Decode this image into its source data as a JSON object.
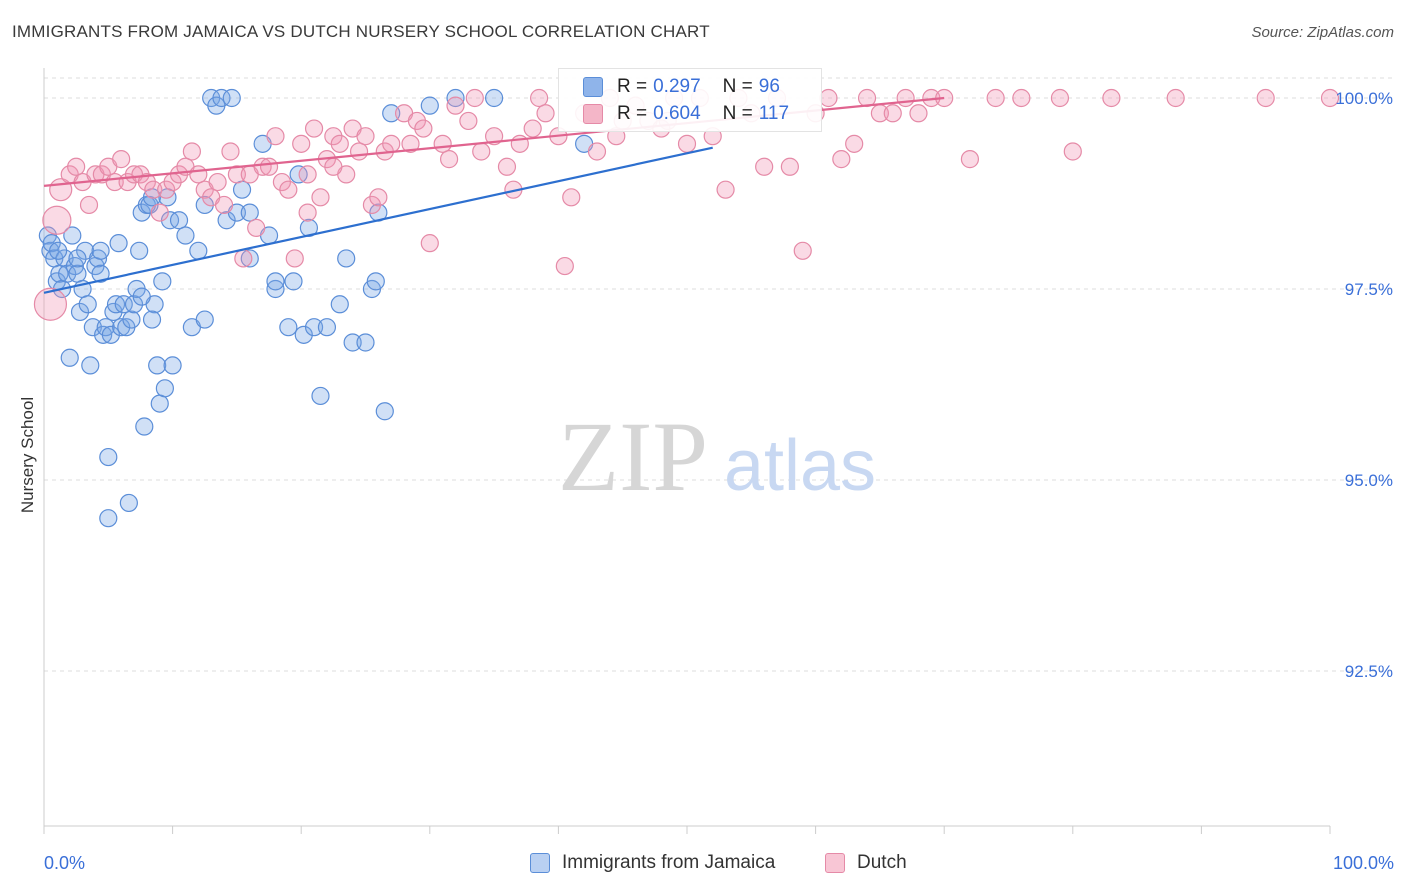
{
  "title": "IMMIGRANTS FROM JAMAICA VS DUTCH NURSERY SCHOOL CORRELATION CHART",
  "source": "Source: ZipAtlas.com",
  "watermark": {
    "zip": "ZIP",
    "atlas": "atlas"
  },
  "legend_top": {
    "rows": [
      {
        "r_label": "R = ",
        "r_value": "0.297",
        "n_label": "N = ",
        "n_value": "96",
        "color": "#8fb4ea",
        "border": "#5b8ed8"
      },
      {
        "r_label": "R = ",
        "r_value": "0.604",
        "n_label": "N = ",
        "n_value": "117",
        "color": "#f4b6c8",
        "border": "#e58aa7"
      }
    ]
  },
  "legend_bottom": [
    {
      "label": "Immigrants from Jamaica",
      "color": "#b9d0f2",
      "border": "#5b8ed8"
    },
    {
      "label": "Dutch",
      "color": "#f8c6d5",
      "border": "#e58aa7"
    }
  ],
  "chart_data": {
    "type": "scatter",
    "title": "IMMIGRANTS FROM JAMAICA VS DUTCH NURSERY SCHOOL CORRELATION CHART",
    "xlabel": "",
    "ylabel": "Nursery School",
    "xlim": [
      0,
      100
    ],
    "ylim": [
      90.5,
      100.4
    ],
    "x_tick_labels": [
      "0.0%",
      "100.0%"
    ],
    "y_ticks": [
      {
        "value": 100.0,
        "label": "100.0%"
      },
      {
        "value": 97.5,
        "label": "97.5%"
      },
      {
        "value": 95.0,
        "label": "95.0%"
      },
      {
        "value": 92.5,
        "label": "92.5%"
      }
    ],
    "grid": true,
    "series": [
      {
        "name": "Immigrants from Jamaica",
        "color": "#5b8ed8",
        "fill": "rgba(120,165,230,0.35)",
        "line_color": "#2d6fcf",
        "trend": {
          "x": [
            0,
            52
          ],
          "y": [
            97.45,
            99.35
          ]
        },
        "points": [
          [
            0.3,
            98.2
          ],
          [
            0.5,
            98.0
          ],
          [
            0.6,
            98.1
          ],
          [
            0.8,
            97.9
          ],
          [
            1.0,
            97.6
          ],
          [
            1.2,
            97.7
          ],
          [
            1.4,
            97.5
          ],
          [
            1.6,
            97.9
          ],
          [
            1.8,
            97.7
          ],
          [
            2.0,
            96.6
          ],
          [
            2.2,
            98.2
          ],
          [
            2.4,
            97.8
          ],
          [
            2.6,
            97.7
          ],
          [
            2.8,
            97.2
          ],
          [
            3.0,
            97.5
          ],
          [
            3.2,
            98.0
          ],
          [
            3.4,
            97.3
          ],
          [
            3.6,
            96.5
          ],
          [
            3.8,
            97.0
          ],
          [
            4.0,
            97.8
          ],
          [
            4.2,
            97.9
          ],
          [
            4.4,
            98.0
          ],
          [
            4.6,
            96.9
          ],
          [
            4.8,
            97.0
          ],
          [
            5.0,
            95.3
          ],
          [
            5.2,
            96.9
          ],
          [
            5.4,
            97.2
          ],
          [
            5.6,
            97.3
          ],
          [
            5.8,
            98.1
          ],
          [
            6.0,
            97.0
          ],
          [
            6.2,
            97.3
          ],
          [
            6.4,
            97.0
          ],
          [
            6.6,
            94.7
          ],
          [
            6.8,
            97.1
          ],
          [
            7.0,
            97.3
          ],
          [
            7.2,
            97.5
          ],
          [
            7.4,
            98.0
          ],
          [
            7.6,
            98.5
          ],
          [
            7.8,
            95.7
          ],
          [
            8.0,
            98.6
          ],
          [
            8.2,
            98.6
          ],
          [
            8.4,
            98.7
          ],
          [
            8.6,
            97.3
          ],
          [
            8.8,
            96.5
          ],
          [
            9.0,
            96.0
          ],
          [
            9.2,
            97.6
          ],
          [
            9.4,
            96.2
          ],
          [
            9.6,
            98.7
          ],
          [
            9.8,
            98.4
          ],
          [
            10.0,
            96.5
          ],
          [
            10.5,
            98.4
          ],
          [
            11.0,
            98.2
          ],
          [
            11.5,
            97.0
          ],
          [
            12.0,
            98.0
          ],
          [
            12.5,
            98.6
          ],
          [
            13.0,
            100.0
          ],
          [
            13.4,
            99.9
          ],
          [
            13.8,
            100.0
          ],
          [
            14.2,
            98.4
          ],
          [
            14.6,
            100.0
          ],
          [
            15.0,
            98.5
          ],
          [
            15.4,
            98.8
          ],
          [
            16.0,
            97.9
          ],
          [
            17.0,
            99.4
          ],
          [
            17.5,
            98.2
          ],
          [
            18.0,
            97.5
          ],
          [
            19.0,
            97.0
          ],
          [
            19.4,
            97.6
          ],
          [
            19.8,
            99.0
          ],
          [
            20.2,
            96.9
          ],
          [
            20.6,
            98.3
          ],
          [
            21.0,
            97.0
          ],
          [
            21.5,
            96.1
          ],
          [
            22.0,
            97.0
          ],
          [
            23.0,
            97.3
          ],
          [
            23.5,
            97.9
          ],
          [
            24.0,
            96.8
          ],
          [
            25.0,
            96.8
          ],
          [
            25.5,
            97.5
          ],
          [
            25.8,
            97.6
          ],
          [
            26.0,
            98.5
          ],
          [
            26.5,
            95.9
          ],
          [
            27.0,
            99.8
          ],
          [
            30.0,
            99.9
          ],
          [
            32.0,
            100.0
          ],
          [
            35.0,
            100.0
          ],
          [
            42.0,
            99.4
          ],
          [
            4.4,
            97.7
          ],
          [
            2.6,
            97.9
          ],
          [
            1.1,
            98.0
          ],
          [
            5.0,
            94.5
          ],
          [
            8.4,
            97.1
          ],
          [
            16.0,
            98.5
          ],
          [
            18.0,
            97.6
          ],
          [
            7.6,
            97.4
          ],
          [
            12.5,
            97.1
          ]
        ]
      },
      {
        "name": "Dutch",
        "color": "#e58aa7",
        "fill": "rgba(240,150,180,0.35)",
        "line_color": "#e0648f",
        "trend": {
          "x": [
            0,
            70
          ],
          "y": [
            98.85,
            100.0
          ]
        },
        "points": [
          [
            0.5,
            97.3
          ],
          [
            1.0,
            98.4
          ],
          [
            1.3,
            98.8
          ],
          [
            2.0,
            99.0
          ],
          [
            2.5,
            99.1
          ],
          [
            3.0,
            98.9
          ],
          [
            3.5,
            98.6
          ],
          [
            4.0,
            99.0
          ],
          [
            4.5,
            99.0
          ],
          [
            5.0,
            99.1
          ],
          [
            5.5,
            98.9
          ],
          [
            6.0,
            99.2
          ],
          [
            6.5,
            98.9
          ],
          [
            7.0,
            99.0
          ],
          [
            7.5,
            99.0
          ],
          [
            8.0,
            98.9
          ],
          [
            8.5,
            98.8
          ],
          [
            9.0,
            98.5
          ],
          [
            9.5,
            98.8
          ],
          [
            10.0,
            98.9
          ],
          [
            10.5,
            99.0
          ],
          [
            11.0,
            99.1
          ],
          [
            11.5,
            99.3
          ],
          [
            12.0,
            99.0
          ],
          [
            12.5,
            98.8
          ],
          [
            13.0,
            98.7
          ],
          [
            13.5,
            98.9
          ],
          [
            14.0,
            98.6
          ],
          [
            14.5,
            99.3
          ],
          [
            15.0,
            99.0
          ],
          [
            15.5,
            97.9
          ],
          [
            16.0,
            99.0
          ],
          [
            16.5,
            98.3
          ],
          [
            17.0,
            99.1
          ],
          [
            17.5,
            99.1
          ],
          [
            18.0,
            99.5
          ],
          [
            18.5,
            98.9
          ],
          [
            19.0,
            98.8
          ],
          [
            19.5,
            97.9
          ],
          [
            20.0,
            99.4
          ],
          [
            20.5,
            99.0
          ],
          [
            21.0,
            99.6
          ],
          [
            21.5,
            98.7
          ],
          [
            22.0,
            99.2
          ],
          [
            22.5,
            99.5
          ],
          [
            23.0,
            99.4
          ],
          [
            23.5,
            99.0
          ],
          [
            24.0,
            99.6
          ],
          [
            24.5,
            99.3
          ],
          [
            25.0,
            99.5
          ],
          [
            25.5,
            98.6
          ],
          [
            26.0,
            98.7
          ],
          [
            26.5,
            99.3
          ],
          [
            27.0,
            99.4
          ],
          [
            28.0,
            99.8
          ],
          [
            28.5,
            99.4
          ],
          [
            29.0,
            99.7
          ],
          [
            30.0,
            98.1
          ],
          [
            31.0,
            99.4
          ],
          [
            31.5,
            99.2
          ],
          [
            32.0,
            99.9
          ],
          [
            33.0,
            99.7
          ],
          [
            34.0,
            99.3
          ],
          [
            35.0,
            99.5
          ],
          [
            36.0,
            99.1
          ],
          [
            36.5,
            98.8
          ],
          [
            37.0,
            99.4
          ],
          [
            38.0,
            99.6
          ],
          [
            39.0,
            99.8
          ],
          [
            40.0,
            99.5
          ],
          [
            40.5,
            97.8
          ],
          [
            41.0,
            98.7
          ],
          [
            42.0,
            99.8
          ],
          [
            43.0,
            99.3
          ],
          [
            44.0,
            100.0
          ],
          [
            45.0,
            99.7
          ],
          [
            46.0,
            99.9
          ],
          [
            47.0,
            99.7
          ],
          [
            48.0,
            99.6
          ],
          [
            49.0,
            100.0
          ],
          [
            50.0,
            99.4
          ],
          [
            51.0,
            100.0
          ],
          [
            52.0,
            99.5
          ],
          [
            53.0,
            98.8
          ],
          [
            54.0,
            100.0
          ],
          [
            55.0,
            99.8
          ],
          [
            56.0,
            99.1
          ],
          [
            57.0,
            100.0
          ],
          [
            58.0,
            99.1
          ],
          [
            59.0,
            98.0
          ],
          [
            60.0,
            99.8
          ],
          [
            61.0,
            100.0
          ],
          [
            62.0,
            99.2
          ],
          [
            63.0,
            99.4
          ],
          [
            64.0,
            100.0
          ],
          [
            65.0,
            99.8
          ],
          [
            66.0,
            99.8
          ],
          [
            67.0,
            100.0
          ],
          [
            68.0,
            99.8
          ],
          [
            69.0,
            100.0
          ],
          [
            70.0,
            100.0
          ],
          [
            72.0,
            99.2
          ],
          [
            74.0,
            100.0
          ],
          [
            76.0,
            100.0
          ],
          [
            79.0,
            100.0
          ],
          [
            80.0,
            99.3
          ],
          [
            83.0,
            100.0
          ],
          [
            88.0,
            100.0
          ],
          [
            95.0,
            100.0
          ],
          [
            100.0,
            100.0
          ],
          [
            48.5,
            99.7
          ],
          [
            44.5,
            99.5
          ],
          [
            38.5,
            100.0
          ],
          [
            33.5,
            100.0
          ],
          [
            29.5,
            99.6
          ],
          [
            22.5,
            99.1
          ],
          [
            20.5,
            98.5
          ]
        ]
      }
    ]
  }
}
